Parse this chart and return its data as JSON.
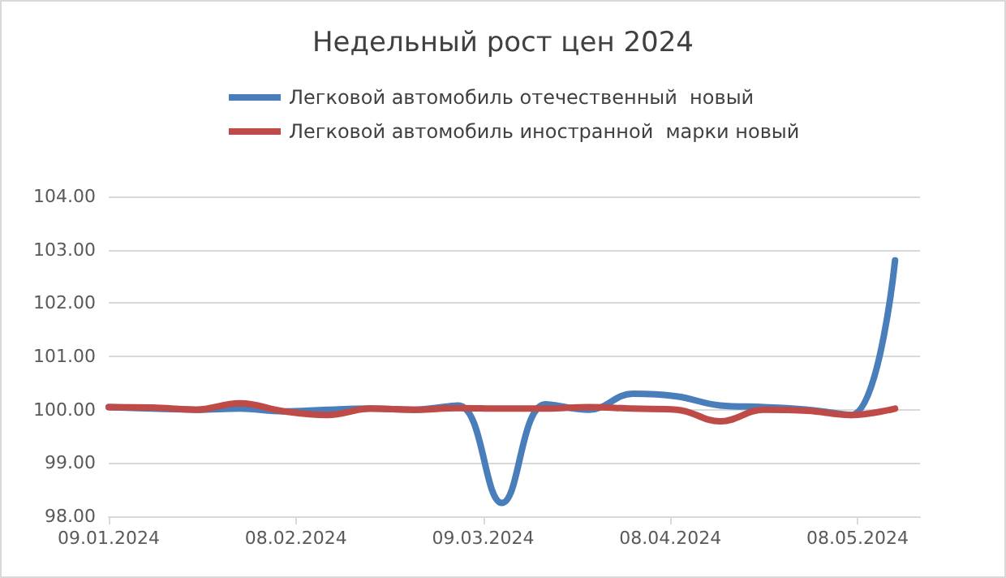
{
  "chart_data": {
    "type": "line",
    "title": "Недельный рост цен 2024",
    "x": [
      "2024-01-09",
      "2024-01-16",
      "2024-01-23",
      "2024-01-30",
      "2024-02-06",
      "2024-02-13",
      "2024-02-20",
      "2024-02-27",
      "2024-03-05",
      "2024-03-12",
      "2024-03-19",
      "2024-03-26",
      "2024-04-02",
      "2024-04-09",
      "2024-04-16",
      "2024-04-23",
      "2024-04-30",
      "2024-05-07",
      "2024-05-14"
    ],
    "series": [
      {
        "name": "Легковой автомобиль отечественный  новый",
        "color": "#4a7ebb",
        "values": [
          100.05,
          100.02,
          100.0,
          100.02,
          99.97,
          100.0,
          100.02,
          100.0,
          100.08,
          98.25,
          100.1,
          100.0,
          100.3,
          100.25,
          100.08,
          100.05,
          100.0,
          99.9,
          102.8
        ]
      },
      {
        "name": "Легковой автомобиль иностранной  марки новый",
        "color": "#be4b48",
        "values": [
          100.05,
          100.04,
          100.0,
          100.12,
          99.97,
          99.9,
          100.02,
          100.0,
          100.03,
          100.02,
          100.02,
          100.05,
          100.02,
          100.0,
          99.78,
          100.0,
          99.98,
          99.9,
          100.02
        ]
      }
    ],
    "xlim": [
      "2024-01-09",
      "2024-05-18"
    ],
    "xticks": [
      {
        "value": "2024-01-09",
        "label": "09.01.2024"
      },
      {
        "value": "2024-02-08",
        "label": "08.02.2024"
      },
      {
        "value": "2024-03-09",
        "label": "09.03.2024"
      },
      {
        "value": "2024-04-08",
        "label": "08.04.2024"
      },
      {
        "value": "2024-05-08",
        "label": "08.05.2024"
      }
    ],
    "ylim": [
      98,
      104
    ],
    "yticks": [
      {
        "value": 98,
        "label": "98.00"
      },
      {
        "value": 99,
        "label": "99.00"
      },
      {
        "value": 100,
        "label": "100.00"
      },
      {
        "value": 101,
        "label": "101.00"
      },
      {
        "value": 102,
        "label": "102.00"
      },
      {
        "value": 103,
        "label": "103.00"
      },
      {
        "value": 104,
        "label": "104.00"
      }
    ],
    "grid": "y",
    "legend": "top",
    "marker": "none",
    "line_style": "solid"
  }
}
